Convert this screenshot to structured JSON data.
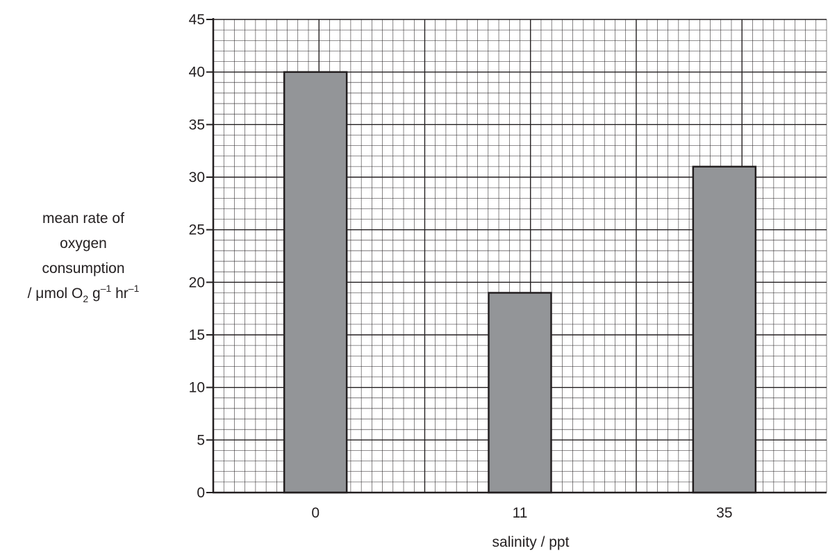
{
  "chart_data": {
    "type": "bar",
    "categories": [
      "0",
      "11",
      "35"
    ],
    "values": [
      40,
      19,
      31
    ],
    "title": "",
    "xlabel": "salinity / ppt",
    "ylabel": {
      "line1": "mean rate of",
      "line2": "oxygen",
      "line3": "consumption",
      "unit_prefix": "/ μmol O",
      "unit_o_sub": "2",
      "unit_g": " g",
      "unit_g_sup": "–1",
      "unit_hr": " hr",
      "unit_hr_sup": "–1"
    },
    "ylim": [
      0,
      45
    ],
    "yticks": [
      "0",
      "5",
      "10",
      "15",
      "20",
      "25",
      "30",
      "35",
      "40",
      "45"
    ],
    "grid": true,
    "colors": {
      "bar_fill": "#939598",
      "bar_stroke": "#231f20",
      "grid": "#231f20",
      "text": "#231f20"
    }
  }
}
